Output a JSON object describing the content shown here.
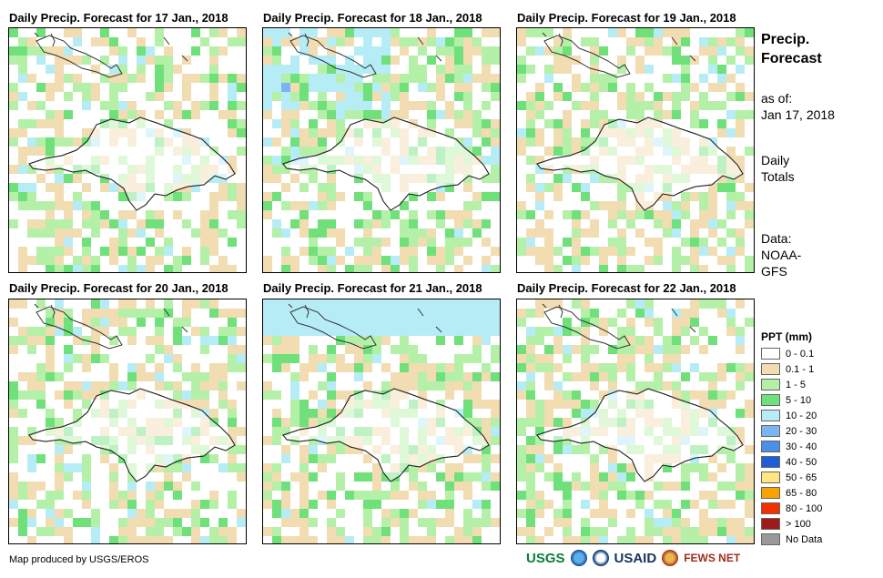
{
  "panels": [
    {
      "title": "Daily Precip. Forecast for 17 Jan., 2018",
      "seed": 17
    },
    {
      "title": "Daily Precip. Forecast for 18 Jan., 2018",
      "seed": 18
    },
    {
      "title": "Daily Precip. Forecast for 19 Jan., 2018",
      "seed": 19
    },
    {
      "title": "Daily Precip. Forecast for 20 Jan., 2018",
      "seed": 20
    },
    {
      "title": "Daily Precip. Forecast for 21 Jan., 2018",
      "seed": 21
    },
    {
      "title": "Daily Precip. Forecast for 22 Jan., 2018",
      "seed": 22
    }
  ],
  "side": {
    "heading_line1": "Precip.",
    "heading_line2": "Forecast",
    "asof_label": "as of:",
    "asof_date": "Jan 17, 2018",
    "totals_line1": "Daily",
    "totals_line2": "Totals",
    "data_line1": "Data:",
    "data_line2": "NOAA-",
    "data_line3": "GFS"
  },
  "legend": {
    "title": "PPT (mm)",
    "items": [
      {
        "label": "0 - 0.1",
        "color": "#ffffff"
      },
      {
        "label": "0.1 - 1",
        "color": "#f2dcb2"
      },
      {
        "label": "1 - 5",
        "color": "#b5f0a8"
      },
      {
        "label": "5 - 10",
        "color": "#6fe07a"
      },
      {
        "label": "10 - 20",
        "color": "#b6ecf6"
      },
      {
        "label": "20 - 30",
        "color": "#7bb4f0"
      },
      {
        "label": "30 - 40",
        "color": "#4a8fe8"
      },
      {
        "label": "40 - 50",
        "color": "#1e5ed8"
      },
      {
        "label": "50 - 65",
        "color": "#ffe680"
      },
      {
        "label": "65 - 80",
        "color": "#f9a300"
      },
      {
        "label": "80 - 100",
        "color": "#f03000"
      },
      {
        "label": "> 100",
        "color": "#a01a1a"
      },
      {
        "label": "No Data",
        "color": "#999999"
      }
    ]
  },
  "footer": {
    "credit": "Map produced by USGS/EROS"
  },
  "logos": {
    "usgs": "USGS",
    "usaid": "USAID",
    "fews": "FEWS NET"
  }
}
